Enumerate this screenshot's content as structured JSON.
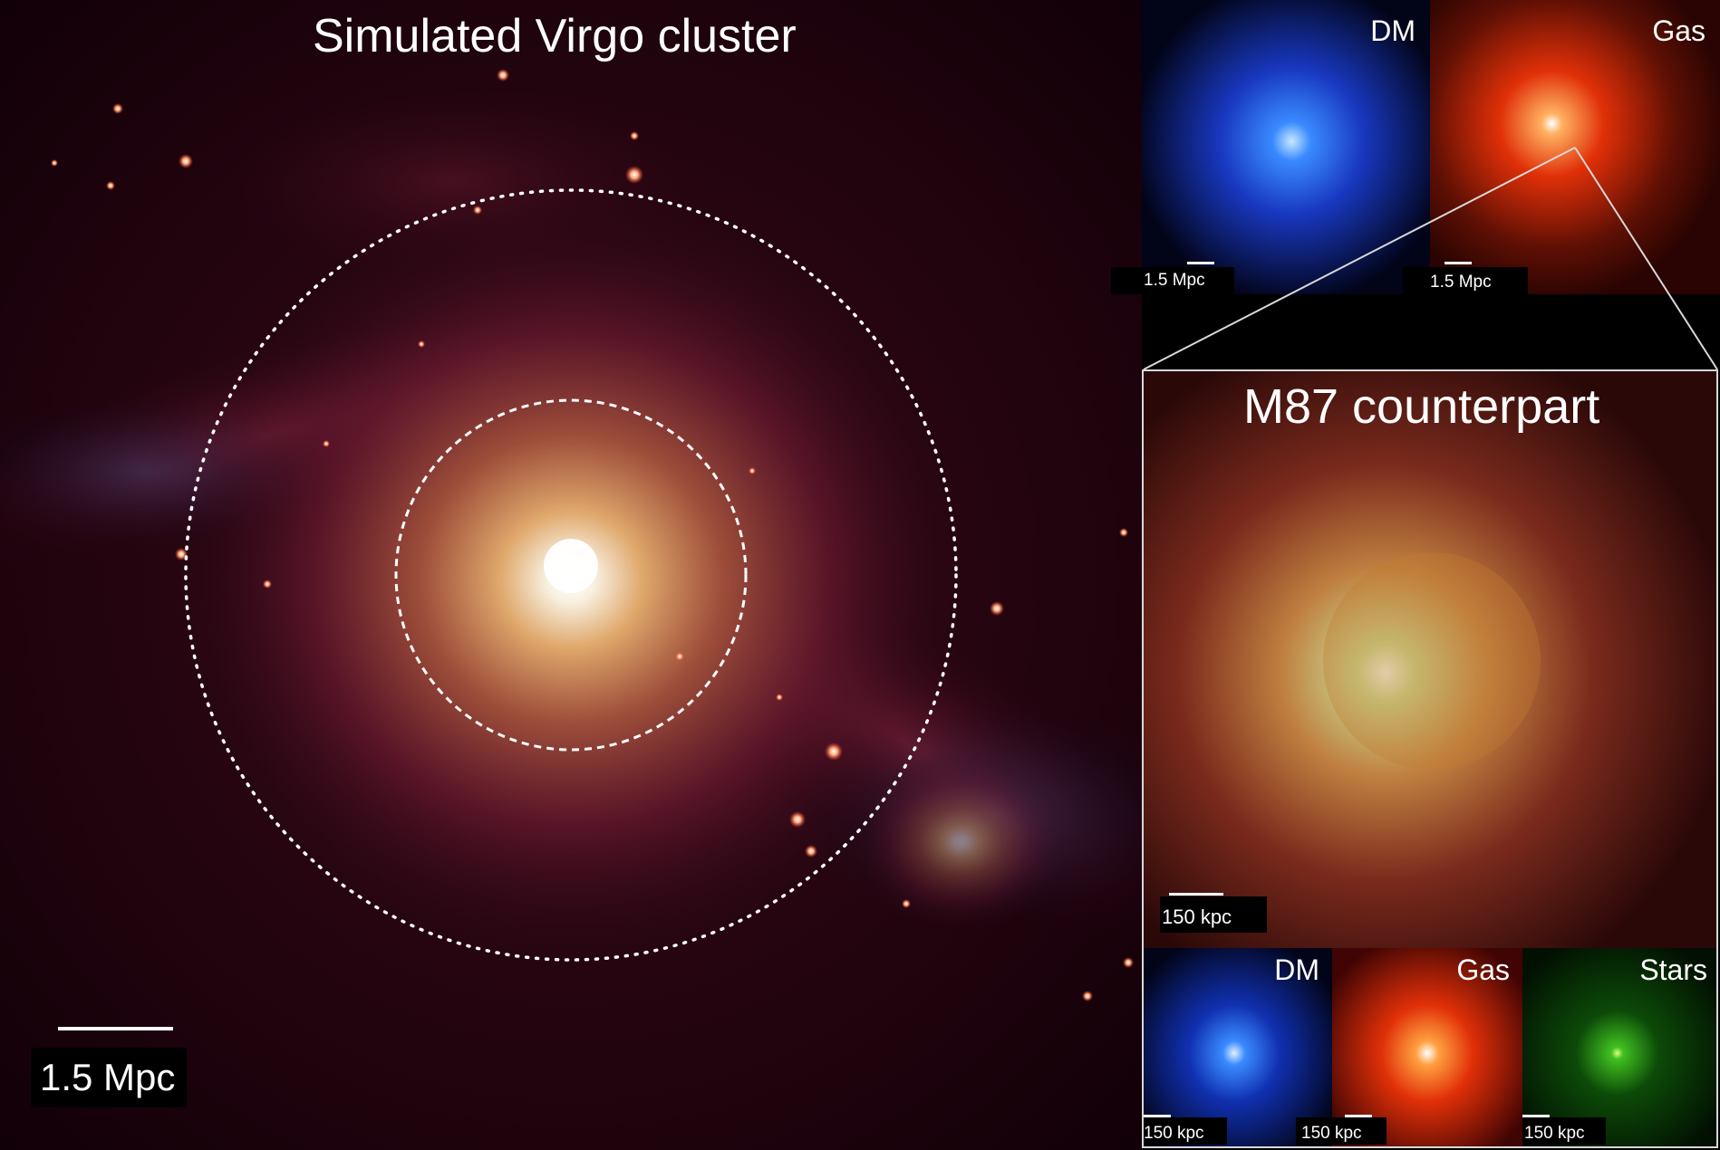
{
  "main": {
    "title": "Simulated Virgo cluster",
    "scale_label": "1.5 Mpc"
  },
  "top_panels": [
    {
      "name": "DM",
      "scale_label": "1.5 Mpc",
      "color": "#2c6cff"
    },
    {
      "name": "Gas",
      "scale_label": "1.5 Mpc",
      "color": "#ff4a10"
    }
  ],
  "zoom": {
    "title": "M87 counterpart",
    "scale_label": "150 kpc"
  },
  "bottom_panels": [
    {
      "name": "DM",
      "scale_label": "150 kpc",
      "color": "#2a66ff"
    },
    {
      "name": "Gas",
      "scale_label": "150 kpc",
      "color": "#ff5a10"
    },
    {
      "name": "Stars",
      "scale_label": "150 kpc",
      "color": "#30d020"
    }
  ],
  "colors": {
    "background": "#100008",
    "cluster_core": "#ffffff",
    "cluster_halo": "#c06a40"
  }
}
